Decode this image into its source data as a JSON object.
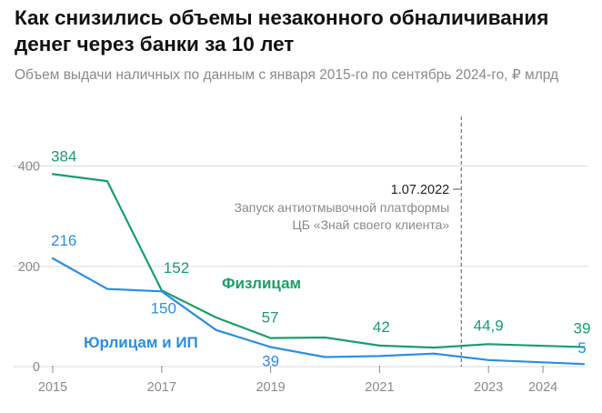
{
  "header": {
    "title": "Как снизились объемы незаконного обналичивания денег через банки за 10 лет",
    "subtitle": "Объем выдачи наличных по данным с января 2015-го по сентябрь 2024-го, ₽ млрд"
  },
  "colors": {
    "physical": "#1a9e6a",
    "legal": "#2b8ee2",
    "axis_text": "#8a8a8a",
    "grid": "#d9d9d9",
    "annotation_line": "#555555"
  },
  "chart_data": {
    "type": "line",
    "title": "Как снизились объемы незаконного обналичивания денег через банки за 10 лет",
    "subtitle": "Объем выдачи наличных по данным с января 2015-го по сентябрь 2024-го, ₽ млрд",
    "xlim": [
      2015,
      2024.75
    ],
    "ylim": [
      0,
      450
    ],
    "yticks": [
      0,
      200,
      400
    ],
    "xticks": [
      {
        "value": 2015,
        "label": "2015"
      },
      {
        "value": 2017,
        "label": "2017"
      },
      {
        "value": 2019,
        "label": "2019"
      },
      {
        "value": 2021,
        "label": "2021"
      },
      {
        "value": 2023,
        "label": "2023"
      },
      {
        "value": 2024,
        "label": "2024"
      }
    ],
    "series": [
      {
        "key": "physical",
        "name": "Физлицам",
        "points": [
          [
            2015,
            384
          ],
          [
            2016,
            370
          ],
          [
            2017,
            152
          ],
          [
            2018,
            98
          ],
          [
            2019,
            57
          ],
          [
            2020,
            58
          ],
          [
            2021,
            42
          ],
          [
            2022,
            38
          ],
          [
            2023,
            44.9
          ],
          [
            2024.75,
            39
          ]
        ],
        "labels": [
          {
            "x": 2015,
            "text": "384"
          },
          {
            "x": 2017,
            "text": "152"
          },
          {
            "x": 2019,
            "text": "57"
          },
          {
            "x": 2021,
            "text": "42"
          },
          {
            "x": 2023,
            "text": "44,9"
          },
          {
            "x": 2024.75,
            "text": "39"
          }
        ]
      },
      {
        "key": "legal",
        "name": "Юрлицам и ИП",
        "points": [
          [
            2015,
            216
          ],
          [
            2016,
            155
          ],
          [
            2017,
            150
          ],
          [
            2018,
            73
          ],
          [
            2019,
            39
          ],
          [
            2020,
            19
          ],
          [
            2021,
            21
          ],
          [
            2022,
            26
          ],
          [
            2023,
            13
          ],
          [
            2024.75,
            5
          ]
        ],
        "labels": [
          {
            "x": 2015,
            "text": "216"
          },
          {
            "x": 2017,
            "text": "150"
          },
          {
            "x": 2019,
            "text": "39"
          },
          {
            "x": 2024.75,
            "text": "5"
          }
        ]
      }
    ],
    "annotation": {
      "x": 2022.5,
      "date": "1.07.2022",
      "text_lines": [
        "Запуск антиотмывочной платформы",
        "ЦБ «Знай своего клиента»"
      ]
    }
  }
}
